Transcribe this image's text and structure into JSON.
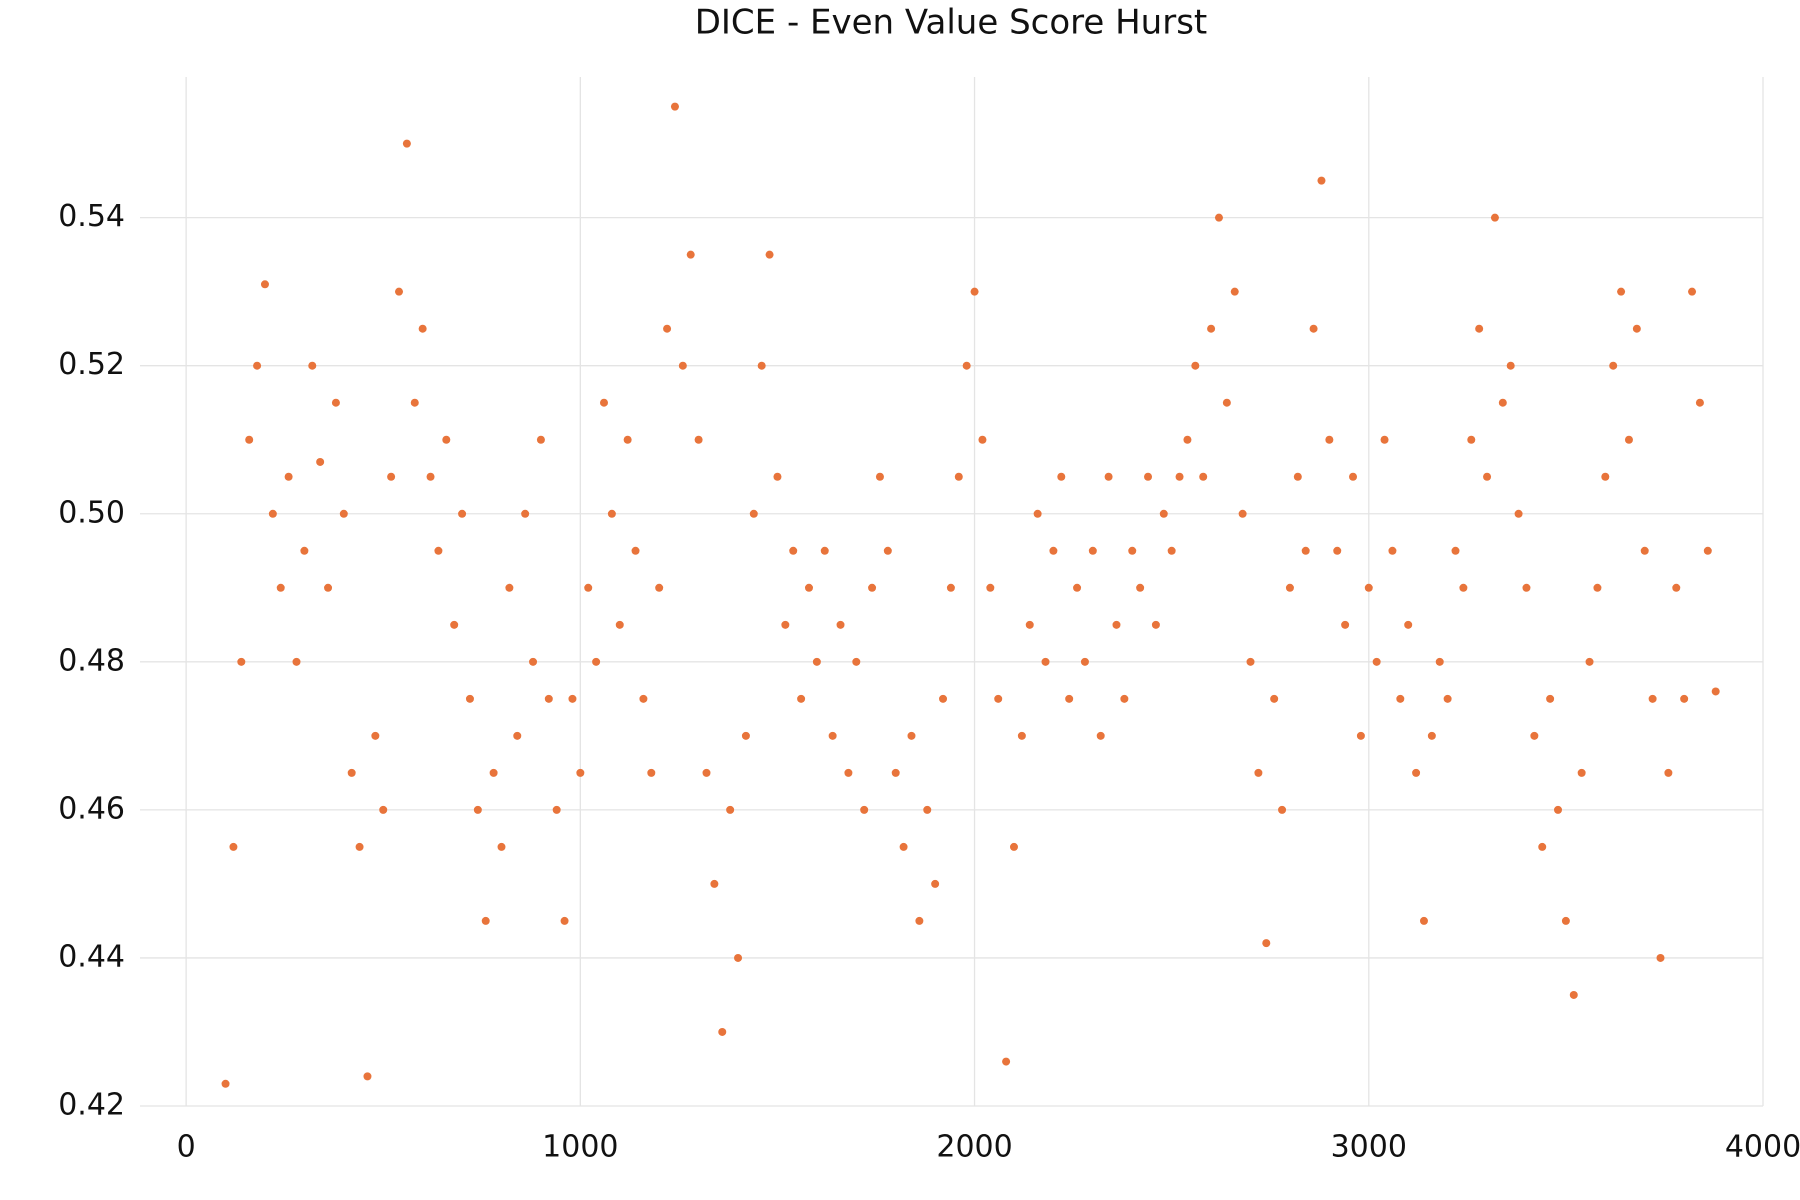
{
  "chart_data": {
    "type": "scatter",
    "title": "DICE - Even Value Score Hurst",
    "xlim": [
      -117,
      4000
    ],
    "ylim": [
      0.42,
      0.559
    ],
    "xticks": [
      0,
      1000,
      2000,
      3000,
      4000
    ],
    "yticks": [
      0.42,
      0.44,
      0.46,
      0.48,
      {
        "value": 0.5,
        "label": "0.50"
      },
      0.52,
      0.54
    ],
    "grid": true,
    "series": [
      {
        "color": "#e8743b",
        "x": [
          100,
          120,
          140,
          160,
          180,
          200,
          220,
          240,
          260,
          280,
          300,
          320,
          340,
          360,
          380,
          400,
          420,
          440,
          460,
          480,
          500,
          520,
          540,
          560,
          580,
          600,
          620,
          640,
          660,
          680,
          700,
          720,
          740,
          760,
          780,
          800,
          820,
          840,
          860,
          880,
          900,
          920,
          940,
          960,
          980,
          1000,
          1020,
          1040,
          1060,
          1080,
          1100,
          1120,
          1140,
          1160,
          1180,
          1200,
          1220,
          1240,
          1260,
          1280,
          1300,
          1320,
          1340,
          1360,
          1380,
          1400,
          1420,
          1440,
          1460,
          1480,
          1500,
          1520,
          1540,
          1560,
          1580,
          1600,
          1620,
          1640,
          1660,
          1680,
          1700,
          1720,
          1740,
          1760,
          1780,
          1800,
          1820,
          1840,
          1860,
          1880,
          1900,
          1920,
          1940,
          1960,
          1980,
          2000,
          2020,
          2040,
          2060,
          2080,
          2100,
          2120,
          2140,
          2160,
          2180,
          2200,
          2220,
          2240,
          2260,
          2280,
          2300,
          2320,
          2340,
          2360,
          2380,
          2400,
          2420,
          2440,
          2460,
          2480,
          2500,
          2520,
          2540,
          2560,
          2580,
          2600,
          2620,
          2640,
          2660,
          2680,
          2700,
          2720,
          2740,
          2760,
          2780,
          2800,
          2820,
          2840,
          2860,
          2880,
          2900,
          2920,
          2940,
          2960,
          2980,
          3000,
          3020,
          3040,
          3060,
          3080,
          3100,
          3120,
          3140,
          3160,
          3180,
          3200,
          3220,
          3240,
          3260,
          3280,
          3300,
          3320,
          3340,
          3360,
          3380,
          3400,
          3420,
          3440,
          3460,
          3480,
          3500,
          3520,
          3540,
          3560,
          3580,
          3600,
          3620,
          3640,
          3660,
          3680,
          3700,
          3720,
          3740,
          3760,
          3780,
          3800,
          3820,
          3840,
          3860,
          3880
        ],
        "values": [
          0.423,
          0.455,
          0.48,
          0.51,
          0.52,
          0.531,
          0.5,
          0.49,
          0.505,
          0.48,
          0.495,
          0.52,
          0.507,
          0.49,
          0.515,
          0.5,
          0.465,
          0.455,
          0.424,
          0.47,
          0.46,
          0.505,
          0.53,
          0.55,
          0.515,
          0.525,
          0.505,
          0.495,
          0.51,
          0.485,
          0.5,
          0.475,
          0.46,
          0.445,
          0.465,
          0.455,
          0.49,
          0.47,
          0.5,
          0.48,
          0.51,
          0.475,
          0.46,
          0.445,
          0.475,
          0.465,
          0.49,
          0.48,
          0.515,
          0.5,
          0.485,
          0.51,
          0.495,
          0.475,
          0.465,
          0.49,
          0.525,
          0.555,
          0.52,
          0.535,
          0.51,
          0.465,
          0.45,
          0.43,
          0.46,
          0.44,
          0.47,
          0.5,
          0.52,
          0.535,
          0.505,
          0.485,
          0.495,
          0.475,
          0.49,
          0.48,
          0.495,
          0.47,
          0.485,
          0.465,
          0.48,
          0.46,
          0.49,
          0.505,
          0.495,
          0.465,
          0.455,
          0.47,
          0.445,
          0.46,
          0.45,
          0.475,
          0.49,
          0.505,
          0.52,
          0.53,
          0.51,
          0.49,
          0.475,
          0.426,
          0.455,
          0.47,
          0.485,
          0.5,
          0.48,
          0.495,
          0.505,
          0.475,
          0.49,
          0.48,
          0.495,
          0.47,
          0.505,
          0.485,
          0.475,
          0.495,
          0.49,
          0.505,
          0.485,
          0.5,
          0.495,
          0.505,
          0.51,
          0.52,
          0.505,
          0.525,
          0.54,
          0.515,
          0.53,
          0.5,
          0.48,
          0.465,
          0.442,
          0.475,
          0.46,
          0.49,
          0.505,
          0.495,
          0.525,
          0.545,
          0.51,
          0.495,
          0.485,
          0.505,
          0.47,
          0.49,
          0.48,
          0.51,
          0.495,
          0.475,
          0.485,
          0.465,
          0.445,
          0.47,
          0.48,
          0.475,
          0.495,
          0.49,
          0.51,
          0.525,
          0.505,
          0.54,
          0.515,
          0.52,
          0.5,
          0.49,
          0.47,
          0.455,
          0.475,
          0.46,
          0.445,
          0.435,
          0.465,
          0.48,
          0.49,
          0.505,
          0.52,
          0.53,
          0.51,
          0.525,
          0.495,
          0.475,
          0.44,
          0.465,
          0.49,
          0.475,
          0.53,
          0.515,
          0.495,
          0.476
        ]
      }
    ]
  }
}
